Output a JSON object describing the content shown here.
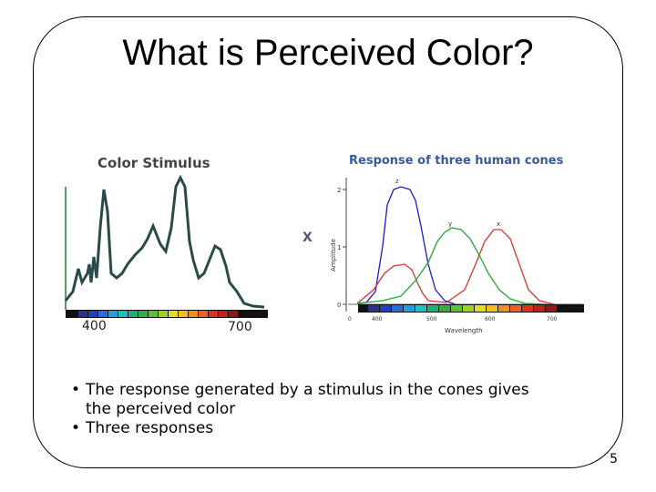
{
  "slide": {
    "title": "What is Perceived Color?",
    "bullets": [
      "The response generated by a stimulus in the cones gives the perceived color",
      "Three responses"
    ],
    "page_number": "5"
  },
  "left_figure": {
    "title": "Color Stimulus",
    "tick_labels": [
      "400",
      "700"
    ]
  },
  "operator": "X",
  "right_figure": {
    "title": "Response of three human cones",
    "ylabel": "Amplitude",
    "xlabel": "Wavelength",
    "y_ticks": [
      "0",
      "1",
      "2"
    ],
    "x_ticks": [
      "0",
      "400",
      "500",
      "600",
      "700"
    ],
    "curve_labels": [
      "z",
      "y",
      "x"
    ]
  },
  "colors": {
    "z_curve": "#1a1acc",
    "y_curve": "#22aa33",
    "x_curve": "#dd3333",
    "title_blue": "#3a5a9a",
    "operator": "#555577"
  }
}
